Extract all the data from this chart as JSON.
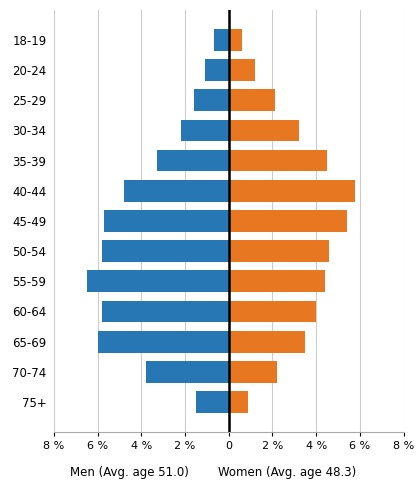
{
  "age_groups": [
    "18-19",
    "20-24",
    "25-29",
    "30-34",
    "35-39",
    "40-44",
    "45-49",
    "50-54",
    "55-59",
    "60-64",
    "65-69",
    "70-74",
    "75+"
  ],
  "men_values": [
    0.7,
    1.1,
    1.6,
    2.2,
    3.3,
    4.8,
    5.7,
    5.8,
    6.5,
    5.8,
    6.0,
    3.8,
    1.5
  ],
  "women_values": [
    0.6,
    1.2,
    2.1,
    3.2,
    4.5,
    5.8,
    5.4,
    4.6,
    4.4,
    4.0,
    3.5,
    2.2,
    0.9
  ],
  "men_color": "#2777B4",
  "women_color": "#E87722",
  "background_color": "#ffffff",
  "grid_color": "#cccccc",
  "xlim": 8,
  "xlabel_men": "Men (Avg. age 51.0)",
  "xlabel_women": "Women (Avg. age 48.3)",
  "tick_labels": [
    "8 %",
    "6 %",
    "4 %",
    "2 %",
    "0",
    "2 %",
    "4 %",
    "6 %",
    "8 %"
  ],
  "tick_positions": [
    -8,
    -6,
    -4,
    -2,
    0,
    2,
    4,
    6,
    8
  ]
}
